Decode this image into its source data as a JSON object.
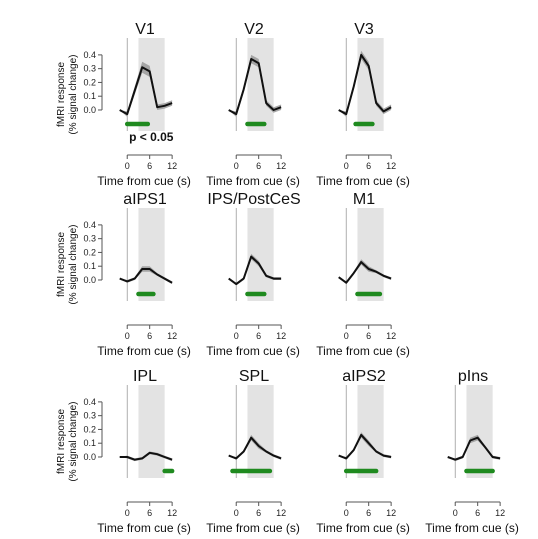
{
  "figure": {
    "ylabel_line1": "fMRI response",
    "ylabel_line2": "(% signal change)",
    "xlabel": "Time from cue (s)",
    "annotation": "p < 0.05"
  },
  "colors": {
    "line": "#111111",
    "error_band": "#9a9a9a",
    "highlight": "#e3e3e3",
    "significance": "#1f8a1f",
    "axis": "#555555"
  },
  "chart_data": [
    {
      "type": "line",
      "title": "V1",
      "x": [
        -2,
        0,
        2,
        4,
        6,
        8,
        10,
        12
      ],
      "y": [
        0.0,
        -0.03,
        0.14,
        0.31,
        0.28,
        0.02,
        0.03,
        0.05
      ],
      "sem": [
        0,
        0.02,
        0.03,
        0.04,
        0.04,
        0.02,
        0.02,
        0.02
      ],
      "highlight": [
        3,
        10
      ],
      "significance": [
        0,
        5.5
      ],
      "ylim": [
        -0.08,
        0.45
      ],
      "xticks": [
        "0",
        "6",
        "12"
      ],
      "yticks": [
        "0.4",
        "0.3",
        "0.2",
        "0.1",
        "0.0"
      ],
      "show_annotation": true
    },
    {
      "type": "line",
      "title": "V2",
      "x": [
        -2,
        0,
        2,
        4,
        6,
        8,
        10,
        12
      ],
      "y": [
        0.0,
        -0.03,
        0.15,
        0.37,
        0.34,
        0.05,
        0.0,
        0.02
      ],
      "sem": [
        0,
        0.02,
        0.02,
        0.03,
        0.03,
        0.02,
        0.02,
        0.02
      ],
      "highlight": [
        3,
        10
      ],
      "significance": [
        3,
        7.5
      ],
      "ylim": [
        -0.08,
        0.45
      ],
      "xticks": [
        "0",
        "6",
        "12"
      ]
    },
    {
      "type": "line",
      "title": "V3",
      "x": [
        -2,
        0,
        2,
        4,
        6,
        8,
        10,
        12
      ],
      "y": [
        0.0,
        -0.03,
        0.17,
        0.4,
        0.32,
        0.05,
        -0.01,
        0.02
      ],
      "sem": [
        0,
        0.02,
        0.02,
        0.03,
        0.03,
        0.02,
        0.02,
        0.02
      ],
      "highlight": [
        3,
        10
      ],
      "significance": [
        2.5,
        7
      ],
      "ylim": [
        -0.08,
        0.45
      ],
      "xticks": [
        "0",
        "6",
        "12"
      ]
    },
    {
      "type": "line",
      "title": "aIPS1",
      "x": [
        -2,
        0,
        2,
        4,
        6,
        8,
        10,
        12
      ],
      "y": [
        0.01,
        -0.01,
        0.01,
        0.08,
        0.08,
        0.04,
        0.01,
        -0.02
      ],
      "sem": [
        0,
        0.01,
        0.01,
        0.02,
        0.02,
        0.01,
        0.01,
        0.01
      ],
      "highlight": [
        3,
        10
      ],
      "significance": [
        3,
        7
      ],
      "ylim": [
        -0.08,
        0.45
      ],
      "xticks": [
        "0",
        "6",
        "12"
      ],
      "yticks": [
        "0.4",
        "0.3",
        "0.2",
        "0.1",
        "0.0"
      ]
    },
    {
      "type": "line",
      "title": "IPS/PostCeS",
      "x": [
        -2,
        0,
        2,
        4,
        6,
        8,
        10,
        12
      ],
      "y": [
        0.01,
        -0.03,
        0.01,
        0.17,
        0.12,
        0.03,
        0.01,
        0.01
      ],
      "sem": [
        0,
        0.01,
        0.01,
        0.02,
        0.02,
        0.01,
        0.01,
        0.01
      ],
      "highlight": [
        3,
        10
      ],
      "significance": [
        3,
        7.5
      ],
      "ylim": [
        -0.08,
        0.45
      ],
      "xticks": [
        "0",
        "6",
        "12"
      ]
    },
    {
      "type": "line",
      "title": "M1",
      "x": [
        -2,
        0,
        2,
        4,
        6,
        8,
        10,
        12
      ],
      "y": [
        0.02,
        -0.02,
        0.05,
        0.13,
        0.08,
        0.06,
        0.03,
        0.01
      ],
      "sem": [
        0,
        0.01,
        0.01,
        0.02,
        0.02,
        0.01,
        0.01,
        0.01
      ],
      "highlight": [
        3,
        10
      ],
      "significance": [
        3,
        9
      ],
      "ylim": [
        -0.08,
        0.45
      ],
      "xticks": [
        "0",
        "6",
        "12"
      ]
    },
    {
      "type": "line",
      "title": "IPL",
      "x": [
        -2,
        0,
        2,
        4,
        6,
        8,
        10,
        12
      ],
      "y": [
        0.0,
        0.0,
        -0.02,
        -0.01,
        0.03,
        0.02,
        0.0,
        -0.02
      ],
      "sem": [
        0,
        0.01,
        0.01,
        0.01,
        0.01,
        0.01,
        0.01,
        0.01
      ],
      "highlight": [
        3,
        10
      ],
      "significance": [
        10,
        12
      ],
      "ylim": [
        -0.08,
        0.45
      ],
      "xticks": [
        "0",
        "6",
        "12"
      ],
      "yticks": [
        "0.4",
        "0.3",
        "0.2",
        "0.1",
        "0.0"
      ]
    },
    {
      "type": "line",
      "title": "SPL",
      "x": [
        -2,
        0,
        2,
        4,
        6,
        8,
        10,
        12
      ],
      "y": [
        0.01,
        -0.01,
        0.04,
        0.14,
        0.08,
        0.04,
        0.01,
        -0.01
      ],
      "sem": [
        0,
        0.01,
        0.01,
        0.02,
        0.02,
        0.01,
        0.01,
        0.01
      ],
      "highlight": [
        3,
        10
      ],
      "significance": [
        -1,
        9
      ],
      "ylim": [
        -0.08,
        0.45
      ],
      "xticks": [
        "0",
        "6",
        "12"
      ]
    },
    {
      "type": "line",
      "title": "aIPS2",
      "x": [
        -2,
        0,
        2,
        4,
        6,
        8,
        10,
        12
      ],
      "y": [
        0.01,
        -0.01,
        0.05,
        0.16,
        0.1,
        0.04,
        0.01,
        0.0
      ],
      "sem": [
        0,
        0.01,
        0.01,
        0.02,
        0.02,
        0.01,
        0.01,
        0.01
      ],
      "highlight": [
        3,
        10
      ],
      "significance": [
        0,
        8
      ],
      "ylim": [
        -0.08,
        0.45
      ],
      "xticks": [
        "0",
        "6",
        "12"
      ]
    },
    {
      "type": "line",
      "title": "pIns",
      "x": [
        -2,
        0,
        2,
        4,
        6,
        8,
        10,
        12
      ],
      "y": [
        0.0,
        -0.02,
        0.0,
        0.12,
        0.14,
        0.07,
        0.0,
        -0.01
      ],
      "sem": [
        0,
        0.01,
        0.01,
        0.02,
        0.02,
        0.01,
        0.01,
        0.01
      ],
      "highlight": [
        3,
        10
      ],
      "significance": [
        3,
        10
      ],
      "ylim": [
        -0.08,
        0.45
      ],
      "xticks": [
        "0",
        "6",
        "12"
      ]
    }
  ]
}
